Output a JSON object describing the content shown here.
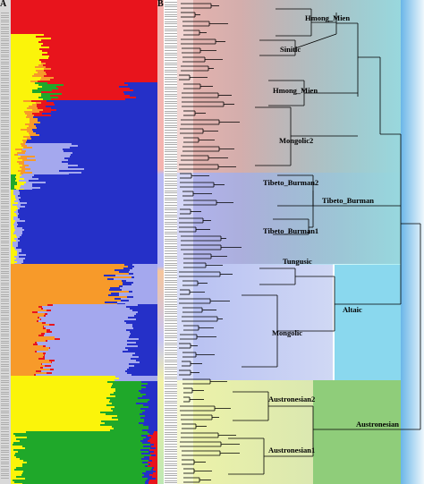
{
  "figure": {
    "panel_a_letter": "A",
    "panel_b_letter": "B"
  },
  "colors": {
    "red": "#e8141c",
    "blue": "#2530c8",
    "lavender": "#a4a8ee",
    "yellow": "#fbf40a",
    "orange": "#f79a2a",
    "green": "#1fa82a",
    "tree_line": "#000000",
    "label_strip": "#d9d9d9"
  },
  "clade_labels": [
    "Hmong_Mien",
    "Sinitic",
    "Hmong_Mien",
    "Mongolic2",
    "Tibeto_Burman2",
    "Tibeto_Burman",
    "Tibeto_Burman1",
    "Tungusic",
    "Altaic",
    "Mongolic",
    "Austronesian2",
    "Austronesian",
    "Austronesian1"
  ]
}
